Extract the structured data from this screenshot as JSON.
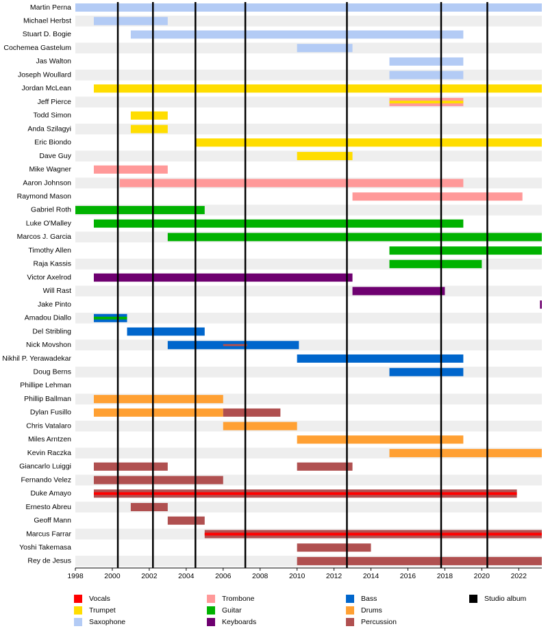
{
  "chart_data": {
    "type": "timeline",
    "xlim": [
      1998,
      2023.25
    ],
    "xticks": [
      1998,
      2000,
      2002,
      2004,
      2006,
      2008,
      2010,
      2012,
      2014,
      2016,
      2018,
      2020,
      2022
    ],
    "roles": [
      {
        "name": "Vocals",
        "color": "#ff0000"
      },
      {
        "name": "Trumpet",
        "color": "#ffdd00"
      },
      {
        "name": "Saxophone",
        "color": "#b3cbf5"
      },
      {
        "name": "Trombone",
        "color": "#ff9999"
      },
      {
        "name": "Guitar",
        "color": "#00b200"
      },
      {
        "name": "Keyboards",
        "color": "#6e0070"
      },
      {
        "name": "Bass",
        "color": "#0066cc"
      },
      {
        "name": "Drums",
        "color": "#ffa033"
      },
      {
        "name": "Percussion",
        "color": "#b05050"
      }
    ],
    "albums": {
      "name": "Studio album",
      "color": "#000000",
      "years": [
        2000.3,
        2002.2,
        2004.5,
        2007.2,
        2012.7,
        2017.8,
        2020.3
      ]
    },
    "members": [
      {
        "name": "Martin Perna",
        "periods": [
          {
            "start": 1998,
            "end": 2023.25,
            "role": "Saxophone"
          }
        ]
      },
      {
        "name": "Michael Herbst",
        "periods": [
          {
            "start": 1999,
            "end": 2003,
            "role": "Saxophone"
          }
        ]
      },
      {
        "name": "Stuart D. Bogie",
        "periods": [
          {
            "start": 2001,
            "end": 2019,
            "role": "Saxophone"
          }
        ]
      },
      {
        "name": "Cochemea Gastelum",
        "periods": [
          {
            "start": 2010,
            "end": 2013,
            "role": "Saxophone"
          }
        ]
      },
      {
        "name": "Jas Walton",
        "periods": [
          {
            "start": 2015,
            "end": 2019,
            "role": "Saxophone"
          }
        ]
      },
      {
        "name": "Joseph Woullard",
        "periods": [
          {
            "start": 2015,
            "end": 2019,
            "role": "Saxophone"
          }
        ]
      },
      {
        "name": "Jordan McLean",
        "periods": [
          {
            "start": 1999,
            "end": 2023.25,
            "role": "Trumpet"
          }
        ]
      },
      {
        "name": "Jeff Pierce",
        "periods": [
          {
            "start": 2015,
            "end": 2019,
            "role": "Trombone",
            "secondary": "Trumpet"
          }
        ]
      },
      {
        "name": "Todd Simon",
        "periods": [
          {
            "start": 2001,
            "end": 2003,
            "role": "Trumpet"
          }
        ]
      },
      {
        "name": "Anda Szilagyi",
        "periods": [
          {
            "start": 2001,
            "end": 2003,
            "role": "Trumpet"
          }
        ]
      },
      {
        "name": "Eric Biondo",
        "periods": [
          {
            "start": 2004.5,
            "end": 2023.25,
            "role": "Trumpet"
          }
        ]
      },
      {
        "name": "Dave Guy",
        "periods": [
          {
            "start": 2010,
            "end": 2013,
            "role": "Trumpet"
          }
        ]
      },
      {
        "name": "Mike Wagner",
        "periods": [
          {
            "start": 1999,
            "end": 2003,
            "role": "Trombone"
          }
        ]
      },
      {
        "name": "Aaron Johnson",
        "periods": [
          {
            "start": 2000.4,
            "end": 2019,
            "role": "Trombone"
          }
        ]
      },
      {
        "name": "Raymond Mason",
        "periods": [
          {
            "start": 2013,
            "end": 2022.2,
            "role": "Trombone"
          }
        ]
      },
      {
        "name": "Gabriel Roth",
        "periods": [
          {
            "start": 1998,
            "end": 2005,
            "role": "Guitar"
          }
        ]
      },
      {
        "name": "Luke O'Malley",
        "periods": [
          {
            "start": 1999,
            "end": 2019,
            "role": "Guitar"
          }
        ]
      },
      {
        "name": "Marcos J. Garcia",
        "periods": [
          {
            "start": 2003,
            "end": 2023.25,
            "role": "Guitar"
          }
        ]
      },
      {
        "name": "Timothy Allen",
        "periods": [
          {
            "start": 2015,
            "end": 2023.25,
            "role": "Guitar"
          }
        ]
      },
      {
        "name": "Raja Kassis",
        "periods": [
          {
            "start": 2015,
            "end": 2020,
            "role": "Guitar"
          }
        ]
      },
      {
        "name": "Victor Axelrod",
        "periods": [
          {
            "start": 1999,
            "end": 2013,
            "role": "Keyboards"
          }
        ]
      },
      {
        "name": "Will Rast",
        "periods": [
          {
            "start": 2013,
            "end": 2018,
            "role": "Keyboards"
          }
        ]
      },
      {
        "name": "Jake Pinto",
        "periods": [
          {
            "start": 2023.15,
            "end": 2023.25,
            "role": "Keyboards"
          }
        ]
      },
      {
        "name": "Amadou Diallo",
        "periods": [
          {
            "start": 1999,
            "end": 2000.8,
            "role": "Bass",
            "secondary": "Guitar"
          }
        ]
      },
      {
        "name": "Del Stribling",
        "periods": [
          {
            "start": 2000.8,
            "end": 2005,
            "role": "Bass"
          }
        ]
      },
      {
        "name": "Nick Movshon",
        "periods": [
          {
            "start": 2003,
            "end": 2010.1,
            "role": "Bass"
          },
          {
            "start": 2006,
            "end": 2007.3,
            "role": "Percussion",
            "thin": true
          }
        ]
      },
      {
        "name": "Nikhil P. Yerawadekar",
        "periods": [
          {
            "start": 2010,
            "end": 2019,
            "role": "Bass"
          }
        ]
      },
      {
        "name": "Doug Berns",
        "periods": [
          {
            "start": 2015,
            "end": 2019,
            "role": "Bass"
          }
        ]
      },
      {
        "name": "Phillipe Lehman",
        "periods": []
      },
      {
        "name": "Phillip Ballman",
        "periods": [
          {
            "start": 1999,
            "end": 2006,
            "role": "Drums"
          }
        ]
      },
      {
        "name": "Dylan Fusillo",
        "periods": [
          {
            "start": 1999,
            "end": 2006,
            "role": "Drums"
          },
          {
            "start": 2006,
            "end": 2009.1,
            "role": "Percussion"
          }
        ]
      },
      {
        "name": "Chris Vatalaro",
        "periods": [
          {
            "start": 2006,
            "end": 2010,
            "role": "Drums"
          }
        ]
      },
      {
        "name": "Miles Arntzen",
        "periods": [
          {
            "start": 2010,
            "end": 2019,
            "role": "Drums"
          }
        ]
      },
      {
        "name": "Kevin Raczka",
        "periods": [
          {
            "start": 2015,
            "end": 2023.25,
            "role": "Drums"
          }
        ]
      },
      {
        "name": "Giancarlo Luiggi",
        "periods": [
          {
            "start": 1999,
            "end": 2003,
            "role": "Percussion"
          },
          {
            "start": 2010,
            "end": 2013,
            "role": "Percussion"
          }
        ]
      },
      {
        "name": "Fernando Velez",
        "periods": [
          {
            "start": 1999,
            "end": 2006,
            "role": "Percussion"
          }
        ]
      },
      {
        "name": "Duke Amayo",
        "periods": [
          {
            "start": 1999,
            "end": 2021.9,
            "role": "Percussion",
            "secondary": "Vocals"
          }
        ]
      },
      {
        "name": "Ernesto Abreu",
        "periods": [
          {
            "start": 2001,
            "end": 2003,
            "role": "Percussion"
          }
        ]
      },
      {
        "name": "Geoff Mann",
        "periods": [
          {
            "start": 2003,
            "end": 2005,
            "role": "Percussion"
          }
        ]
      },
      {
        "name": "Marcus Farrar",
        "periods": [
          {
            "start": 2005,
            "end": 2023.25,
            "role": "Percussion",
            "secondary": "Vocals"
          }
        ]
      },
      {
        "name": "Yoshi Takemasa",
        "periods": [
          {
            "start": 2010,
            "end": 2014,
            "role": "Percussion"
          }
        ]
      },
      {
        "name": "Rey de Jesus",
        "periods": [
          {
            "start": 2010,
            "end": 2023.25,
            "role": "Percussion"
          }
        ]
      }
    ]
  }
}
